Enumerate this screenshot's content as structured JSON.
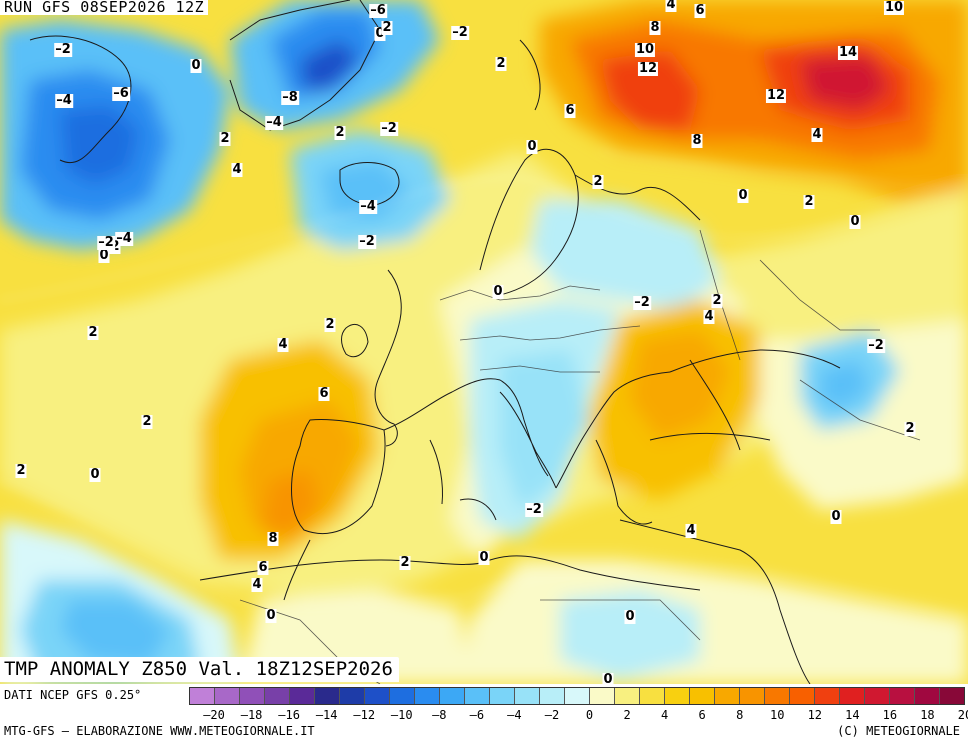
{
  "header": {
    "run_label": "RUN GFS 08SEP2026 12Z"
  },
  "title": "TMP ANOMALY Z850 Val. 18Z12SEP2026",
  "footer": {
    "source": "DATI NCEP GFS 0.25°",
    "credit_left": "MTG-GFS – ELABORAZIONE WWW.METEOGIORNALE.IT",
    "credit_right": "(C) METEOGIORNALE"
  },
  "scale": {
    "colors": [
      "#c080d8",
      "#a868c8",
      "#9050b8",
      "#7840a8",
      "#5a2a98",
      "#2a2a8c",
      "#1e3ca8",
      "#1e50c8",
      "#1e6ee0",
      "#2a8cf0",
      "#3ca8f5",
      "#5ac0f8",
      "#7ad4f8",
      "#98e2f8",
      "#b8eef8",
      "#d8f8fa",
      "#fafac8",
      "#f8f080",
      "#f8e040",
      "#f8d010",
      "#f8c000",
      "#f8a800",
      "#f89400",
      "#f87800",
      "#f86000",
      "#f04010",
      "#e02020",
      "#d01830",
      "#b81040",
      "#a00840",
      "#880838"
    ],
    "ticks": [
      "–20",
      "–18",
      "–16",
      "–14",
      "–12",
      "–10",
      "–8",
      "–6",
      "–4",
      "–2",
      "0",
      "2",
      "4",
      "6",
      "8",
      "10",
      "12",
      "14",
      "16",
      "18",
      "20"
    ]
  },
  "map": {
    "labels": [
      "4",
      "6",
      "–6",
      "0",
      "2",
      "–2",
      "8",
      "–2",
      "–4",
      "–6",
      "10",
      "12",
      "14",
      "0",
      "–8",
      "2",
      "–4",
      "2",
      "–2",
      "10",
      "12",
      "6",
      "8",
      "4",
      "2",
      "–4",
      "4",
      "0",
      "–2",
      "2",
      "0",
      "–4",
      "2",
      "0",
      "–2",
      "0",
      "0",
      "2",
      "2",
      "2",
      "4",
      "–2",
      "2",
      "–2",
      "4",
      "6",
      "2",
      "2",
      "0",
      "2",
      "–2",
      "0",
      "8",
      "6",
      "4",
      "0",
      "2",
      "4",
      "0",
      "0",
      "0"
    ]
  }
}
